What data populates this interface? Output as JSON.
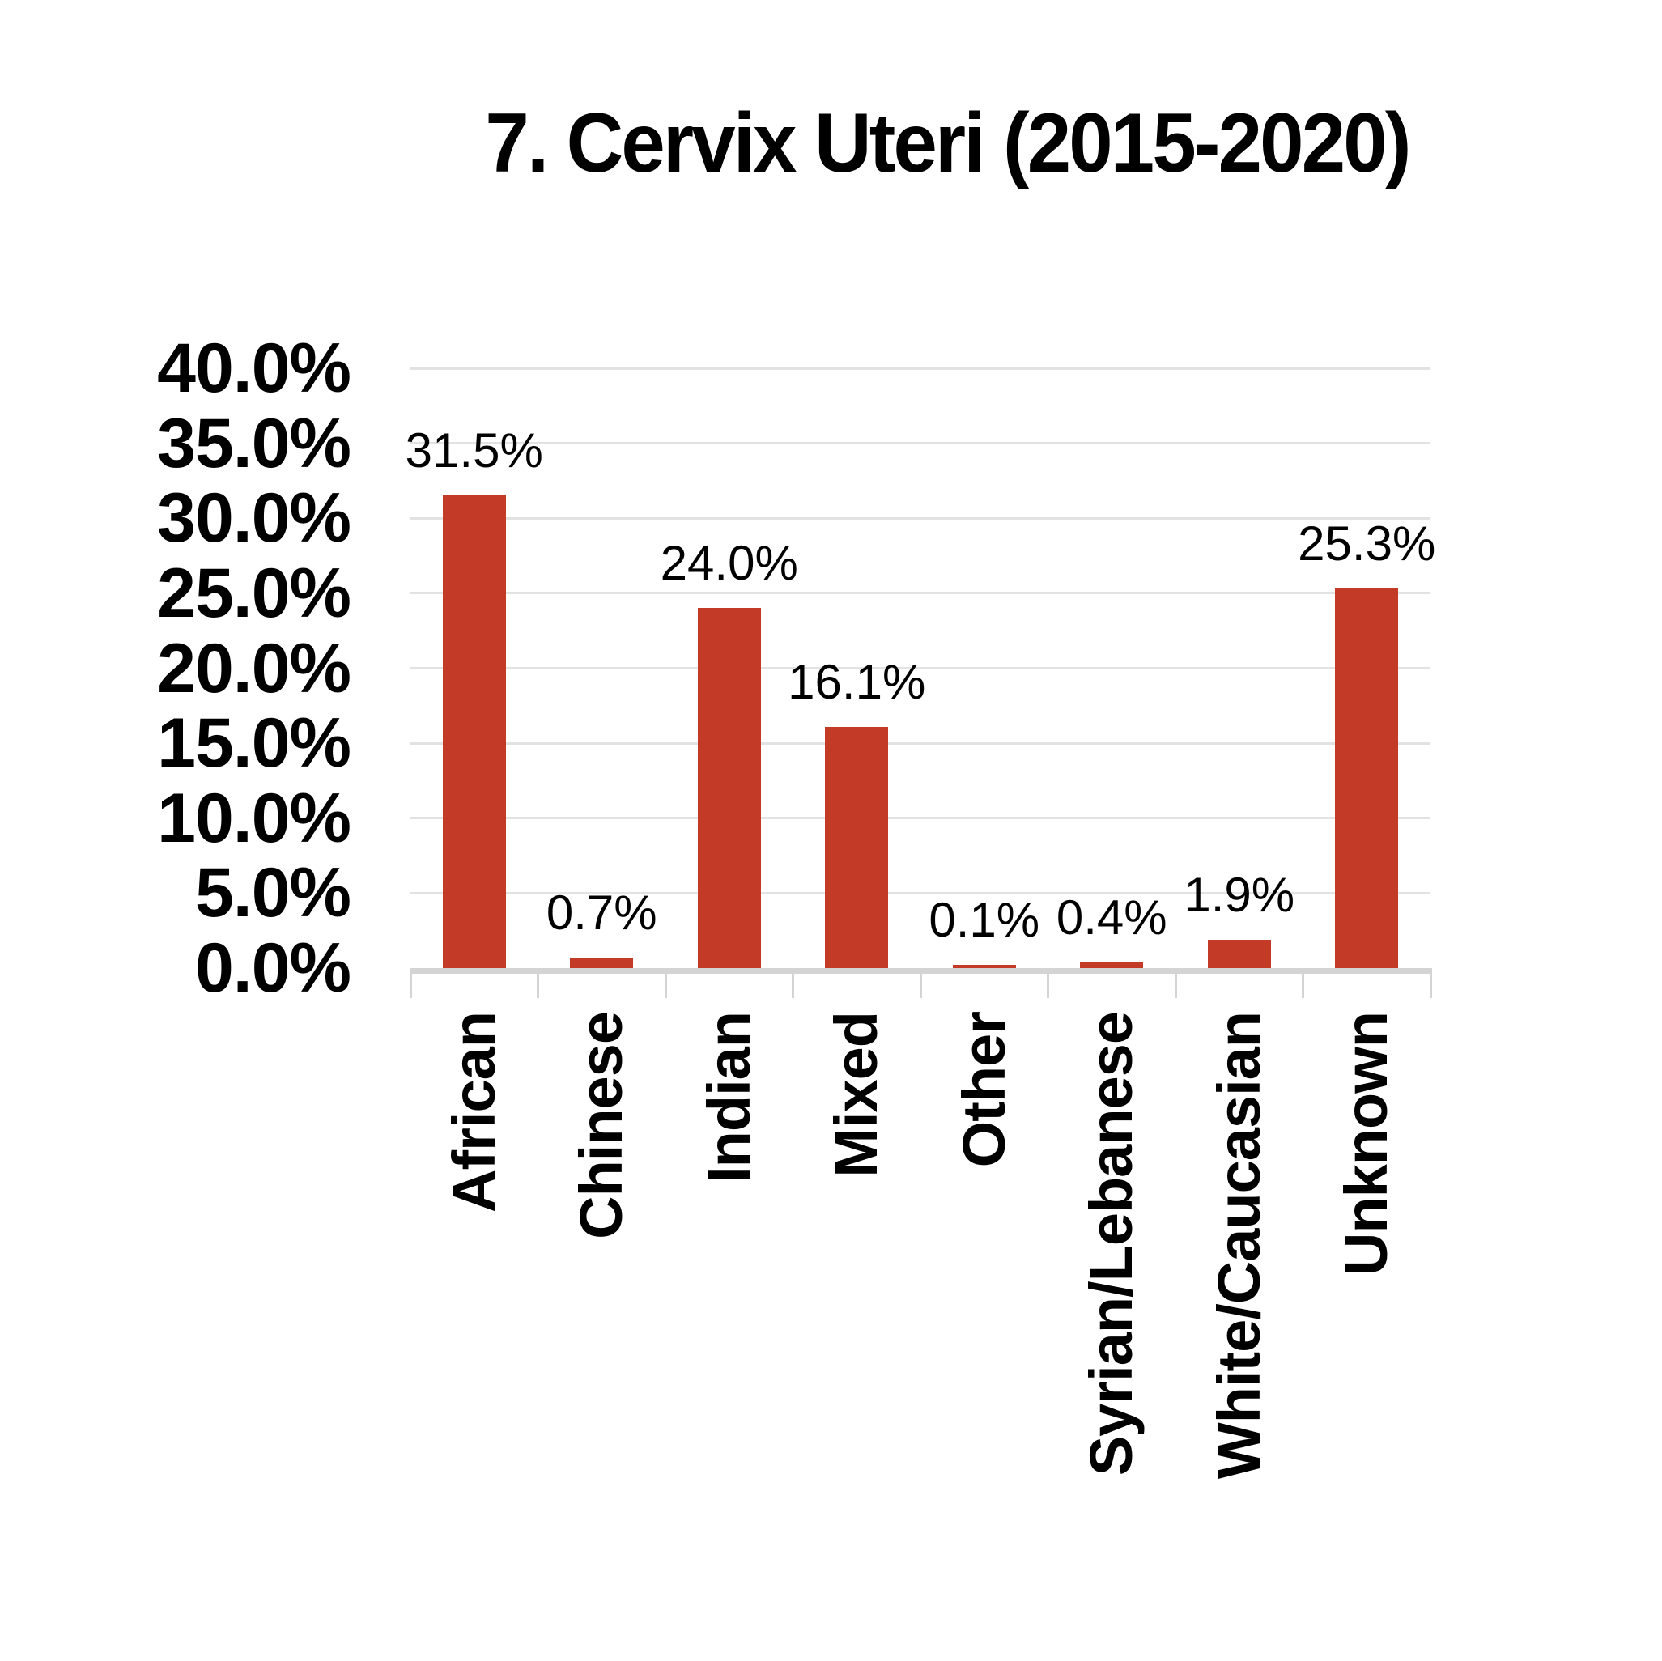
{
  "title": "7. Cervix Uteri (2015-2020)",
  "chart_data": {
    "type": "bar",
    "title": "7. Cervix Uteri (2015-2020)",
    "categories": [
      "African",
      "Chinese",
      "Indian",
      "Mixed",
      "Other",
      "Syrian/Lebanese",
      "White/Caucasian",
      "Unknown"
    ],
    "values": [
      31.5,
      0.7,
      24.0,
      16.1,
      0.1,
      0.4,
      1.9,
      25.3
    ],
    "data_labels": [
      "31.5%",
      "0.7%",
      "24.0%",
      "16.1%",
      "0.1%",
      "0.4%",
      "1.9%",
      "25.3%"
    ],
    "y_tick_labels": [
      "40.0%",
      "35.0%",
      "30.0%",
      "25.0%",
      "20.0%",
      "15.0%",
      "10.0%",
      "5.0%",
      "0.0%"
    ],
    "ylim": [
      0,
      40
    ],
    "y_step": 5,
    "grid": true,
    "legend": "none",
    "bar_color": "#c33a26",
    "gridline_color": "#e2e2e2",
    "axis_color": "#d4d4d4",
    "text_color": "#000000"
  }
}
